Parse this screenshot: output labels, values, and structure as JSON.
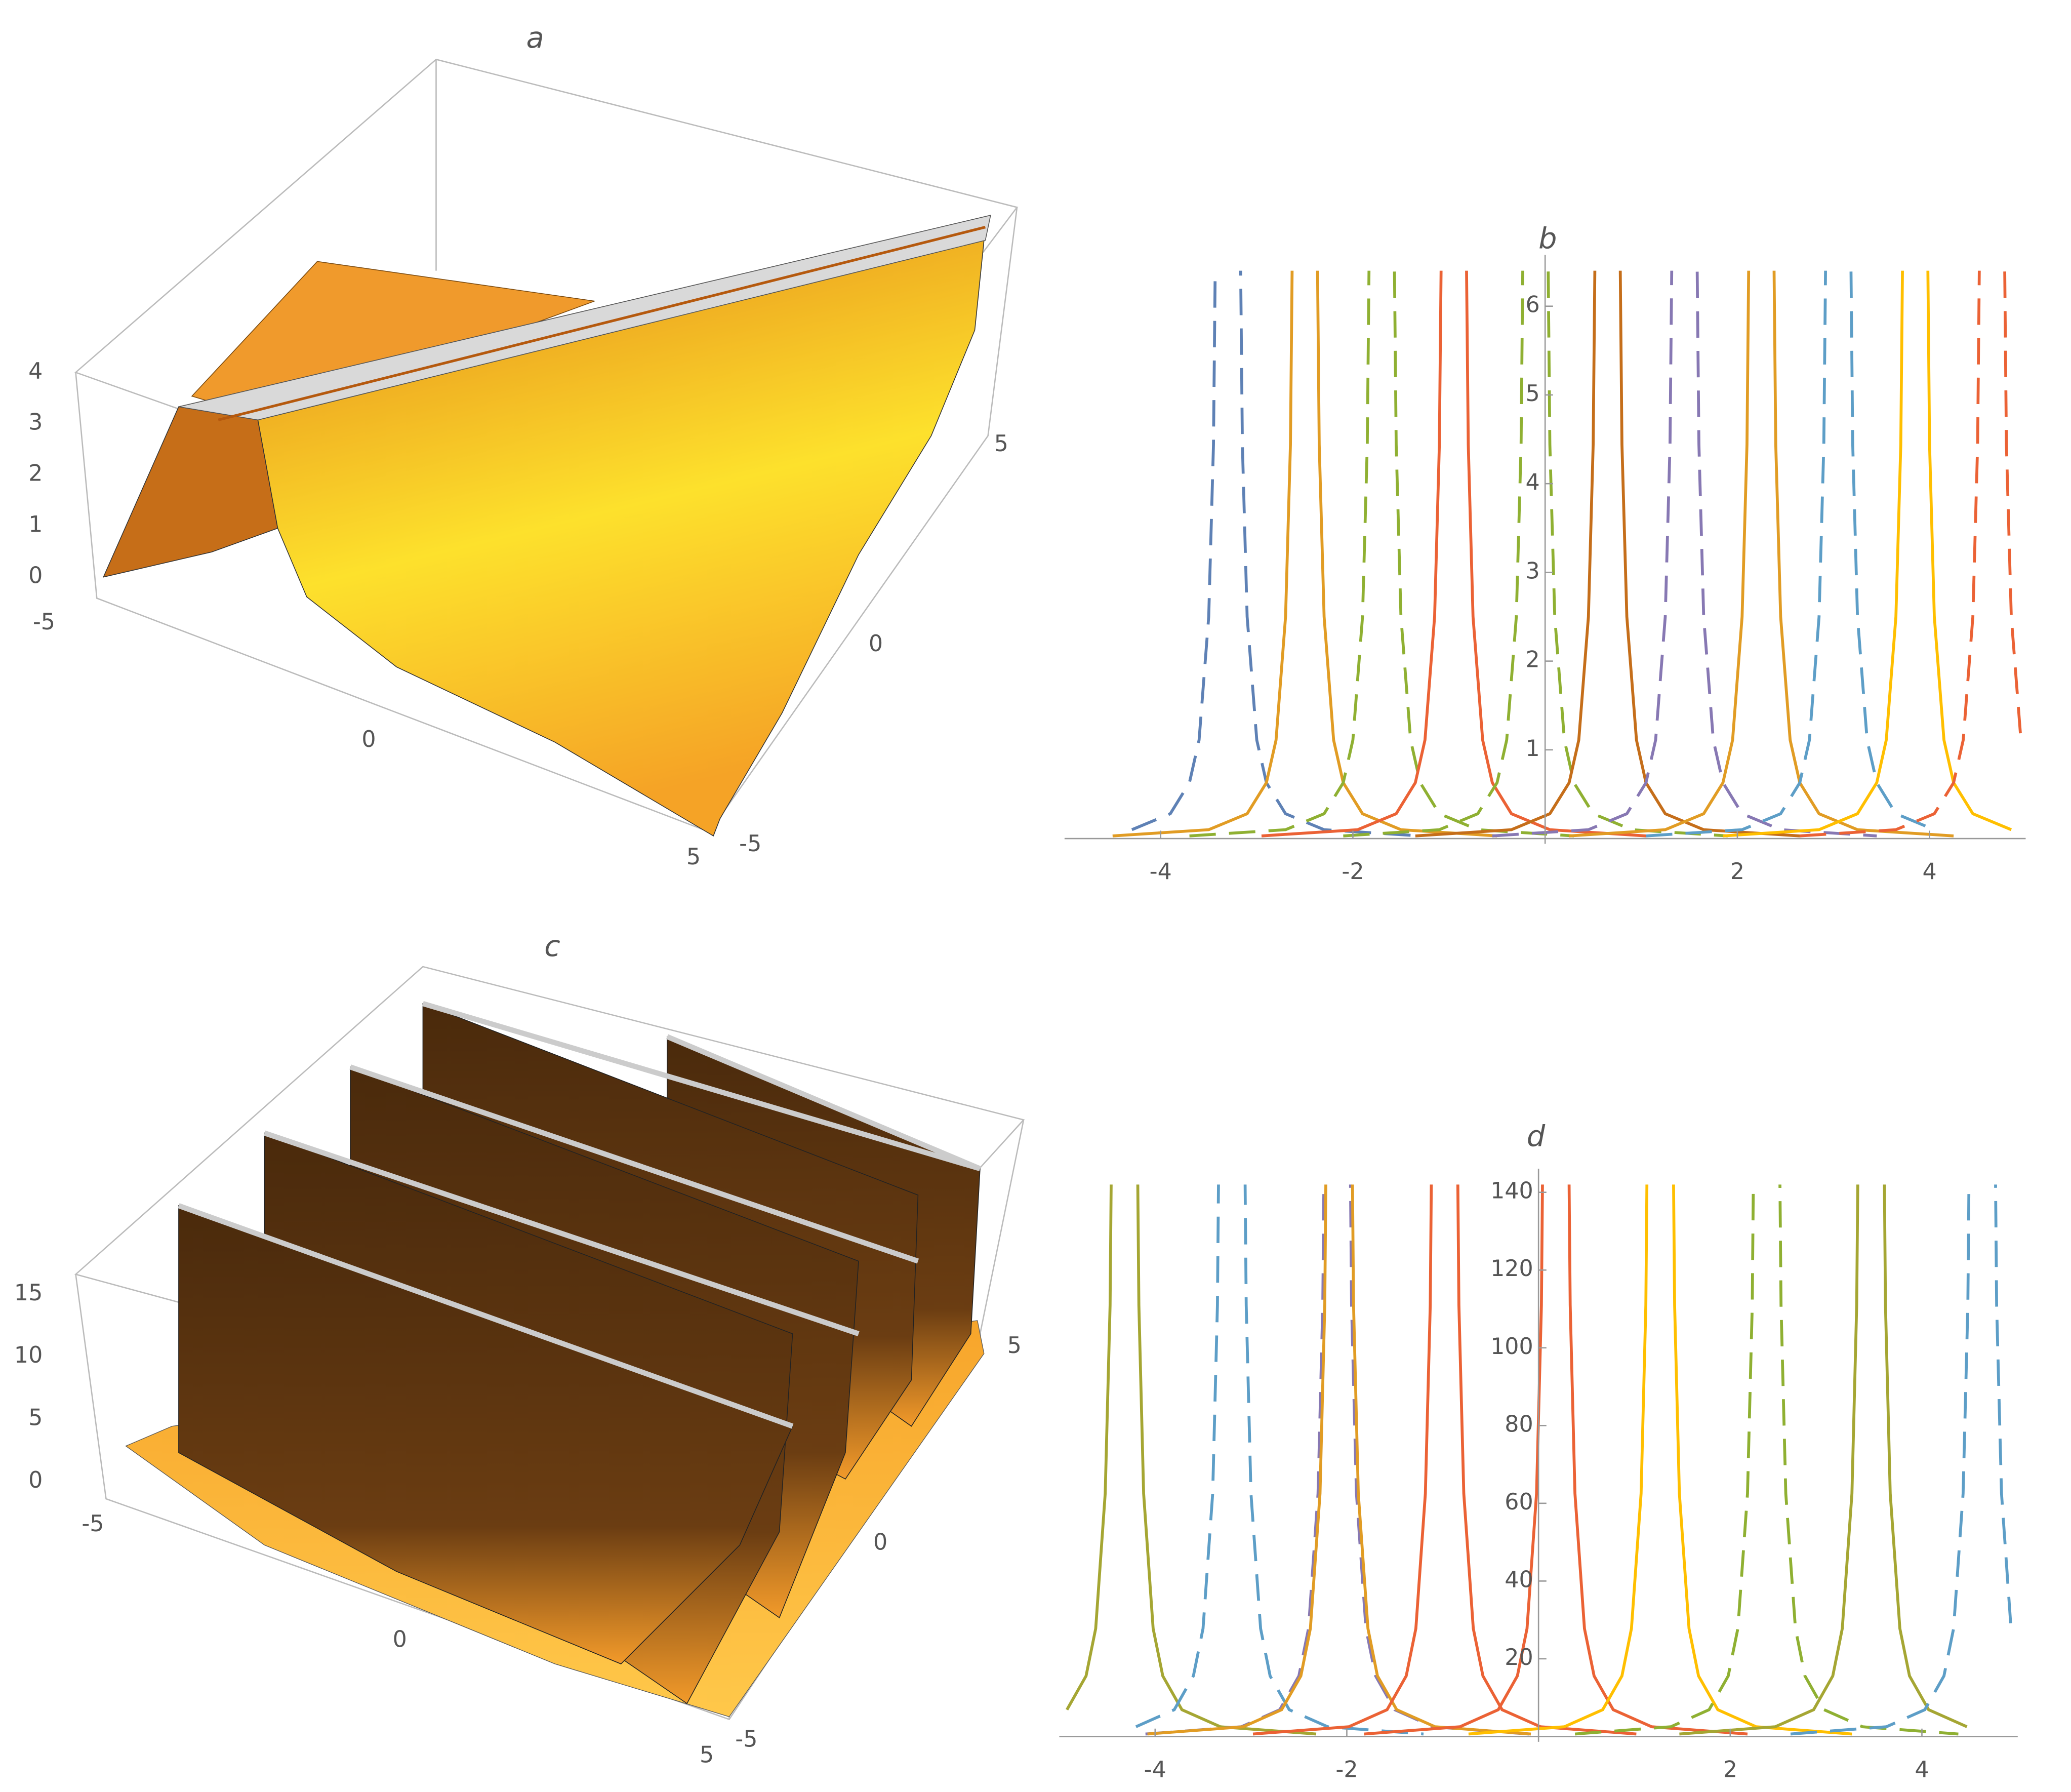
{
  "chart_data": [
    {
      "type": "surface3d",
      "title": "a",
      "zticks": [
        0,
        1,
        2,
        3,
        4
      ],
      "xticks": [
        -5,
        0,
        5
      ],
      "yticks": [
        5,
        0,
        -5
      ]
    },
    {
      "type": "line",
      "title": "b",
      "xlim": [
        -5,
        5
      ],
      "ylim": [
        0,
        6.4
      ],
      "xticks": [
        -4,
        -2,
        2,
        4
      ],
      "yticks": [
        1,
        2,
        3,
        4,
        5,
        6
      ],
      "grid": false,
      "series": [
        {
          "color": "#5e81b5",
          "dash": true,
          "x": [
            -4.3,
            -3.9,
            -3.7,
            -3.6,
            -3.5,
            -3.45,
            -3.4,
            -3.2,
            -3.15,
            -3.1,
            -3.0,
            -2.9,
            -2.7,
            -2.3,
            -1.3
          ],
          "values": [
            0.1,
            0.28,
            0.63,
            1.11,
            2.5,
            4.44,
            10,
            10,
            4.44,
            2.5,
            1.11,
            0.63,
            0.28,
            0.1,
            0.03
          ]
        },
        {
          "color": "#e19c24",
          "dash": false,
          "x": [
            -4.5,
            -3.5,
            -3.1,
            -2.9,
            -2.8,
            -2.7,
            -2.65,
            -2.6,
            -2.4,
            -2.35,
            -2.3,
            -2.2,
            -2.1,
            -1.9,
            -1.5,
            -0.5
          ],
          "values": [
            0.03,
            0.1,
            0.28,
            0.63,
            1.11,
            2.5,
            4.44,
            10,
            10,
            4.44,
            2.5,
            1.11,
            0.63,
            0.28,
            0.1,
            0.03
          ]
        },
        {
          "color": "#8fb032",
          "dash": true,
          "x": [
            -3.7,
            -2.7,
            -2.3,
            -2.1,
            -2.0,
            -1.9,
            -1.85,
            -1.8,
            -1.6,
            -1.55,
            -1.5,
            -1.4,
            -1.3,
            -1.1,
            -0.7,
            0.3
          ],
          "values": [
            0.03,
            0.1,
            0.28,
            0.63,
            1.11,
            2.5,
            4.44,
            10,
            10,
            4.44,
            2.5,
            1.11,
            0.63,
            0.28,
            0.1,
            0.03
          ]
        },
        {
          "color": "#eb6235",
          "dash": false,
          "x": [
            -2.95,
            -1.95,
            -1.55,
            -1.35,
            -1.25,
            -1.15,
            -1.1,
            -1.05,
            -0.85,
            -0.8,
            -0.75,
            -0.65,
            -0.55,
            -0.35,
            0.05,
            1.05
          ],
          "values": [
            0.03,
            0.1,
            0.28,
            0.63,
            1.11,
            2.5,
            4.44,
            10,
            10,
            4.44,
            2.5,
            1.11,
            0.63,
            0.28,
            0.1,
            0.03
          ]
        },
        {
          "color": "#8fb032",
          "dash": true,
          "x": [
            -2.1,
            -1.1,
            -0.7,
            -0.5,
            -0.4,
            -0.3,
            -0.25,
            -0.2,
            0,
            0.05,
            0.1,
            0.2,
            0.3,
            0.5,
            0.9,
            1.9
          ],
          "values": [
            0.03,
            0.1,
            0.28,
            0.63,
            1.11,
            2.5,
            4.44,
            10,
            10,
            4.44,
            2.5,
            1.11,
            0.63,
            0.28,
            0.1,
            0.03
          ]
        },
        {
          "color": "#c56e1a",
          "dash": false,
          "x": [
            -1.35,
            -0.35,
            0.05,
            0.25,
            0.35,
            0.45,
            0.5,
            0.55,
            0.75,
            0.8,
            0.85,
            0.95,
            1.05,
            1.25,
            1.65,
            2.65
          ],
          "values": [
            0.03,
            0.1,
            0.28,
            0.63,
            1.11,
            2.5,
            4.44,
            10,
            10,
            4.44,
            2.5,
            1.11,
            0.63,
            0.28,
            0.1,
            0.03
          ]
        },
        {
          "color": "#8778b3",
          "dash": true,
          "x": [
            -0.55,
            0.45,
            0.85,
            1.05,
            1.15,
            1.25,
            1.3,
            1.35,
            1.55,
            1.6,
            1.65,
            1.75,
            1.85,
            2.05,
            2.45,
            3.45
          ],
          "values": [
            0.03,
            0.1,
            0.28,
            0.63,
            1.11,
            2.5,
            4.44,
            10,
            10,
            4.44,
            2.5,
            1.11,
            0.63,
            0.28,
            0.1,
            0.03
          ]
        },
        {
          "color": "#e19c24",
          "dash": false,
          "x": [
            0.25,
            1.25,
            1.65,
            1.85,
            1.95,
            2.05,
            2.1,
            2.15,
            2.35,
            2.4,
            2.45,
            2.55,
            2.65,
            2.85,
            3.25,
            4.25
          ],
          "values": [
            0.03,
            0.1,
            0.28,
            0.63,
            1.11,
            2.5,
            4.44,
            10,
            10,
            4.44,
            2.5,
            1.11,
            0.63,
            0.28,
            0.1,
            0.03
          ]
        },
        {
          "color": "#5d9ec7",
          "dash": true,
          "x": [
            1.05,
            2.05,
            2.45,
            2.65,
            2.75,
            2.85,
            2.9,
            2.95,
            3.15,
            3.2,
            3.25,
            3.35,
            3.45,
            3.65,
            4.05
          ],
          "values": [
            0.03,
            0.1,
            0.28,
            0.63,
            1.11,
            2.5,
            4.44,
            10,
            10,
            4.44,
            2.5,
            1.11,
            0.63,
            0.28,
            0.1
          ]
        },
        {
          "color": "#ffbf00",
          "dash": false,
          "x": [
            1.85,
            2.85,
            3.25,
            3.45,
            3.55,
            3.65,
            3.7,
            3.75,
            3.95,
            4.0,
            4.05,
            4.15,
            4.25,
            4.45,
            4.85
          ],
          "values": [
            0.03,
            0.1,
            0.28,
            0.63,
            1.11,
            2.5,
            4.44,
            10,
            10,
            4.44,
            2.5,
            1.11,
            0.63,
            0.28,
            0.1
          ]
        },
        {
          "color": "#eb6235",
          "dash": true,
          "x": [
            2.65,
            3.65,
            4.05,
            4.25,
            4.35,
            4.45,
            4.5,
            4.55,
            4.75,
            4.8,
            4.85,
            4.95
          ],
          "values": [
            0.03,
            0.1,
            0.28,
            0.63,
            1.11,
            2.5,
            4.44,
            10,
            10,
            4.44,
            2.5,
            1.11
          ]
        }
      ]
    },
    {
      "type": "surface3d",
      "title": "c",
      "zticks": [
        0,
        5,
        10,
        15
      ],
      "xticks": [
        -5,
        0,
        5
      ],
      "yticks": [
        5,
        0,
        -5
      ]
    },
    {
      "type": "line",
      "title": "d",
      "xlim": [
        -5,
        5
      ],
      "ylim": [
        0,
        142
      ],
      "xticks": [
        -4,
        -2,
        2,
        4
      ],
      "yticks": [
        20,
        40,
        60,
        80,
        100,
        120,
        140
      ],
      "grid": false,
      "series": [
        {
          "color": "#a5a633",
          "dash": false,
          "x": [
            -4.92,
            -4.72,
            -4.62,
            -4.52,
            -4.47,
            -4.42,
            -4.22,
            -4.17,
            -4.12,
            -4.02,
            -3.92,
            -3.72,
            -3.32,
            -2.32
          ],
          "values": [
            6.9,
            15.6,
            27.8,
            62.5,
            111,
            250,
            250,
            111,
            62.5,
            27.8,
            15.6,
            6.9,
            2.5,
            0.63
          ]
        },
        {
          "color": "#5d9ec7",
          "dash": true,
          "x": [
            -4.2,
            -3.8,
            -3.6,
            -3.5,
            -3.4,
            -3.35,
            -3.3,
            -3.1,
            -3.05,
            -3.0,
            -2.9,
            -2.8,
            -2.6,
            -2.2,
            -1.2
          ],
          "values": [
            2.5,
            6.9,
            15.6,
            27.8,
            62.5,
            111,
            250,
            250,
            111,
            62.5,
            27.8,
            15.6,
            6.9,
            2.5,
            0.63
          ]
        },
        {
          "color": "#8778b3",
          "dash": true,
          "x": [
            -4.1,
            -3.1,
            -2.7,
            -2.5,
            -2.4,
            -2.3,
            -2.25,
            -2.2,
            -2.0,
            -1.95,
            -1.9,
            -1.8,
            -1.7,
            -1.5,
            -1.1,
            -0.1
          ],
          "values": [
            0.63,
            2.5,
            6.9,
            15.6,
            27.8,
            62.5,
            111,
            250,
            250,
            111,
            62.5,
            27.8,
            15.6,
            6.9,
            2.5,
            0.63
          ]
        },
        {
          "color": "#e19c24",
          "dash": false,
          "x": [
            -4.08,
            -3.08,
            -2.68,
            -2.48,
            -2.38,
            -2.28,
            -2.23,
            -2.18,
            -1.98,
            -1.93,
            -1.88,
            -1.78,
            -1.68,
            -1.48,
            -1.08,
            -0.08
          ],
          "values": [
            0.63,
            2.5,
            6.9,
            15.6,
            27.8,
            62.5,
            111,
            250,
            250,
            111,
            62.5,
            27.8,
            15.6,
            6.9,
            2.5,
            0.63
          ]
        },
        {
          "color": "#eb6235",
          "dash": false,
          "x": [
            -2.98,
            -1.98,
            -1.58,
            -1.38,
            -1.28,
            -1.18,
            -1.13,
            -1.08,
            -0.88,
            -0.83,
            -0.78,
            -0.68,
            -0.58,
            -0.38,
            0.02,
            1.02
          ],
          "values": [
            0.63,
            2.5,
            6.9,
            15.6,
            27.8,
            62.5,
            111,
            250,
            250,
            111,
            62.5,
            27.8,
            15.6,
            6.9,
            2.5,
            0.63
          ]
        },
        {
          "color": "#eb6235",
          "dash": false,
          "x": [
            -1.82,
            -0.82,
            -0.42,
            -0.22,
            -0.12,
            -0.02,
            0.03,
            0.08,
            0.28,
            0.33,
            0.38,
            0.48,
            0.58,
            0.78,
            1.18,
            2.18
          ],
          "values": [
            0.63,
            2.5,
            6.9,
            15.6,
            27.8,
            62.5,
            111,
            250,
            250,
            111,
            62.5,
            27.8,
            15.6,
            6.9,
            2.5,
            0.63
          ]
        },
        {
          "color": "#ffbf00",
          "dash": false,
          "x": [
            -0.73,
            0.27,
            0.67,
            0.87,
            0.97,
            1.07,
            1.12,
            1.17,
            1.37,
            1.42,
            1.47,
            1.57,
            1.67,
            1.87,
            2.27,
            3.27
          ],
          "values": [
            0.63,
            2.5,
            6.9,
            15.6,
            27.8,
            62.5,
            111,
            250,
            250,
            111,
            62.5,
            27.8,
            15.6,
            6.9,
            2.5,
            0.63
          ]
        },
        {
          "color": "#8fb032",
          "dash": true,
          "x": [
            0.38,
            1.38,
            1.78,
            1.98,
            2.08,
            2.18,
            2.23,
            2.28,
            2.48,
            2.53,
            2.58,
            2.68,
            2.78,
            2.98,
            3.38,
            4.38
          ],
          "values": [
            0.63,
            2.5,
            6.9,
            15.6,
            27.8,
            62.5,
            111,
            250,
            250,
            111,
            62.5,
            27.8,
            15.6,
            6.9,
            2.5,
            0.63
          ]
        },
        {
          "color": "#a5a633",
          "dash": false,
          "x": [
            1.47,
            2.47,
            2.87,
            3.07,
            3.17,
            3.27,
            3.32,
            3.37,
            3.57,
            3.62,
            3.67,
            3.77,
            3.87,
            4.07,
            4.47
          ],
          "values": [
            0.63,
            2.5,
            6.9,
            15.6,
            27.8,
            62.5,
            111,
            250,
            250,
            111,
            62.5,
            27.8,
            15.6,
            6.9,
            2.5
          ]
        },
        {
          "color": "#5d9ec7",
          "dash": true,
          "x": [
            2.63,
            3.63,
            4.03,
            4.23,
            4.33,
            4.43,
            4.48,
            4.53,
            4.73,
            4.78,
            4.83,
            4.93
          ],
          "values": [
            0.63,
            2.5,
            6.9,
            15.6,
            27.8,
            62.5,
            111,
            250,
            250,
            111,
            62.5,
            27.8
          ]
        }
      ]
    }
  ]
}
